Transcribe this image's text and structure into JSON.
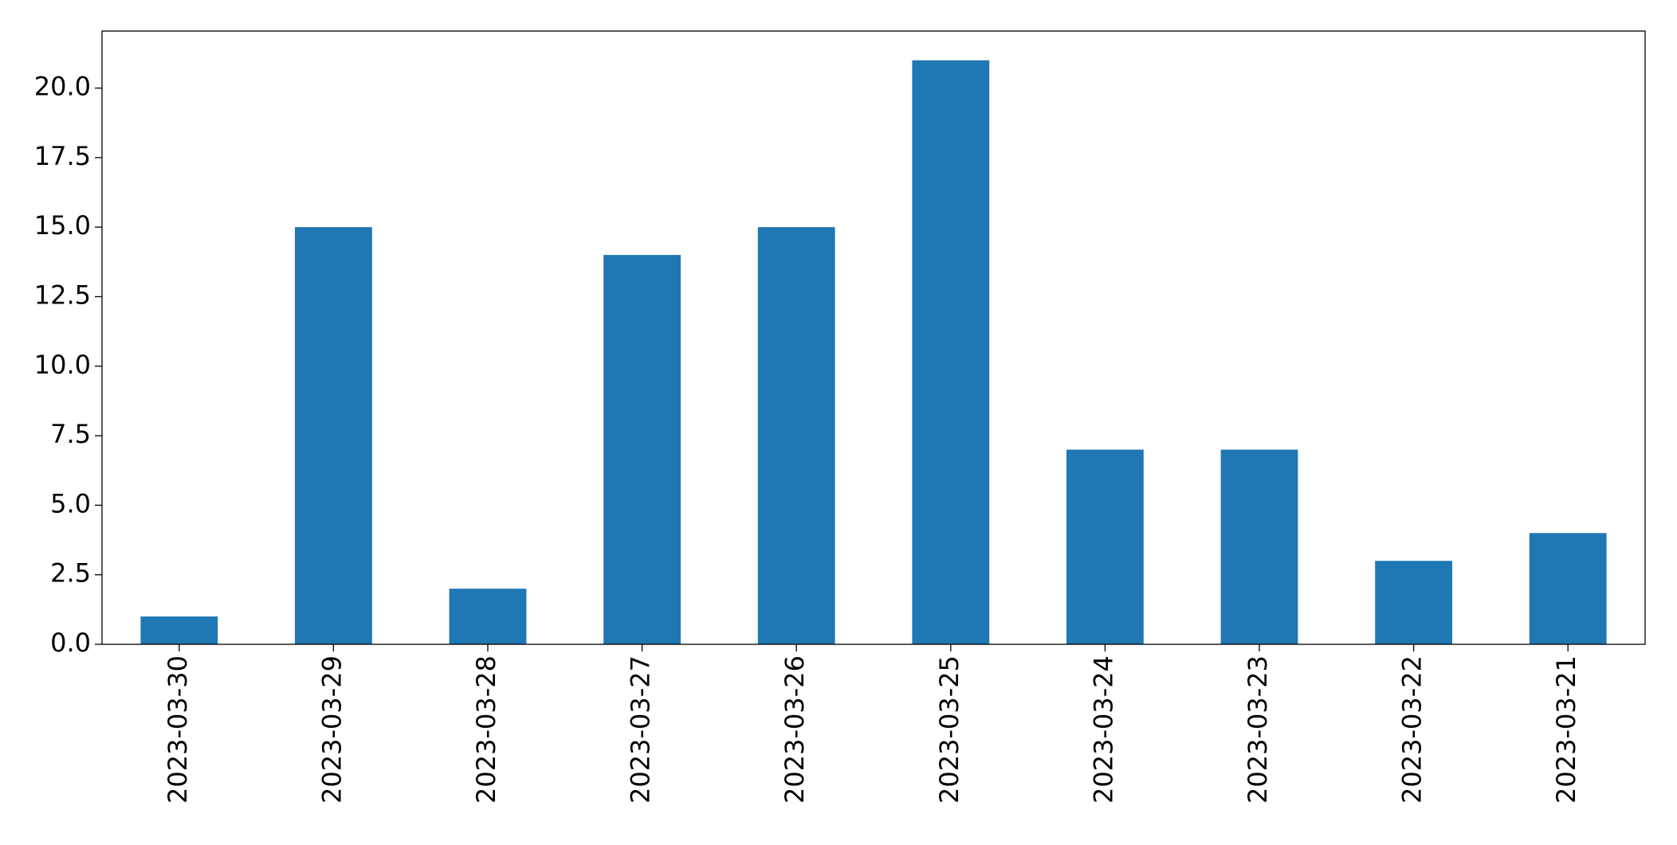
{
  "chart_data": {
    "type": "bar",
    "categories": [
      "2023-03-30",
      "2023-03-29",
      "2023-03-28",
      "2023-03-27",
      "2023-03-26",
      "2023-03-25",
      "2023-03-24",
      "2023-03-23",
      "2023-03-22",
      "2023-03-21"
    ],
    "values": [
      1,
      15,
      2,
      14,
      15,
      21,
      7,
      7,
      3,
      4
    ],
    "color": "#1f77b4",
    "ylim": [
      0,
      22.05
    ],
    "yticks": [
      {
        "value": 0,
        "label": "0.0"
      },
      2.5,
      {
        "value": 5,
        "label": "5.0"
      },
      7.5,
      {
        "value": 10,
        "label": "10.0"
      },
      12.5,
      {
        "value": 15,
        "label": "15.0"
      },
      17.5,
      {
        "value": 20,
        "label": "20.0"
      }
    ],
    "grid": false
  }
}
